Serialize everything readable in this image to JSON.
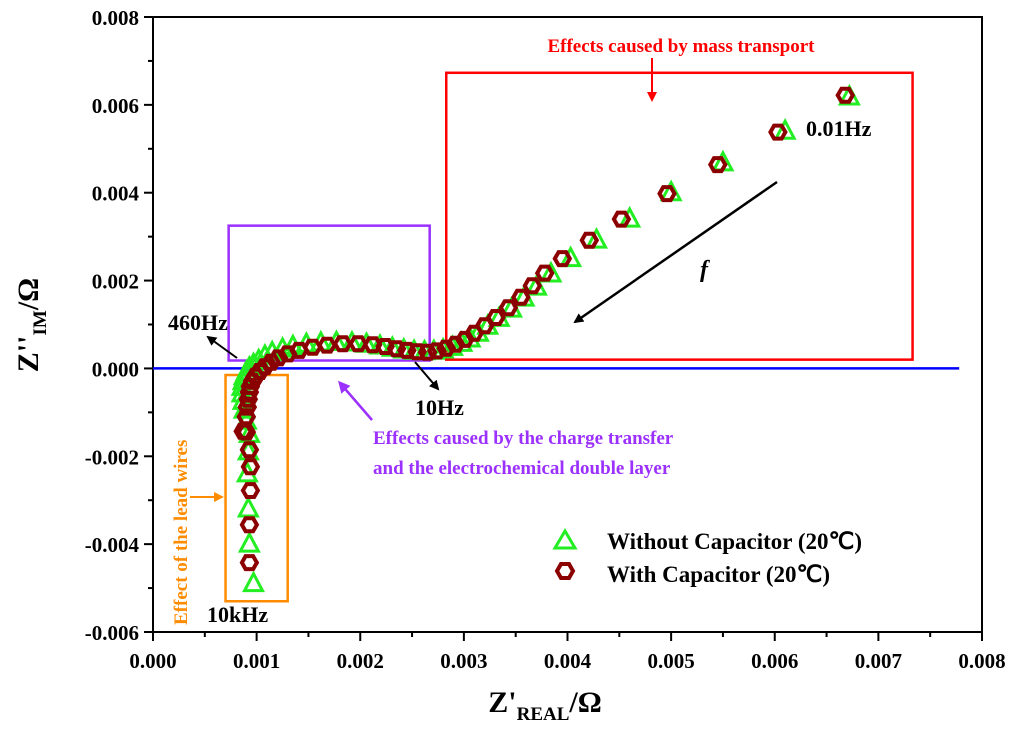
{
  "chart_data": {
    "type": "scatter",
    "title": "",
    "xlabel": "Z'",
    "xlabel_sub": "REAL",
    "xlabel_unit": "/Ω",
    "ylabel": "Z''",
    "ylabel_sub": "IM",
    "ylabel_unit": "/Ω",
    "xlim": [
      0.0,
      0.008
    ],
    "ylim": [
      -0.006,
      0.008
    ],
    "xticks": [
      0.0,
      0.001,
      0.002,
      0.003,
      0.004,
      0.005,
      0.006,
      0.007,
      0.008
    ],
    "yticks": [
      -0.006,
      -0.004,
      -0.002,
      0.0,
      0.002,
      0.004,
      0.006,
      0.008
    ],
    "xtick_labels": [
      "0.000",
      "0.001",
      "0.002",
      "0.003",
      "0.004",
      "0.005",
      "0.006",
      "0.007",
      "0.008"
    ],
    "ytick_labels": [
      "-0.006",
      "-0.004",
      "-0.002",
      "0.000",
      "0.002",
      "0.004",
      "0.006",
      "0.008"
    ],
    "legend_position": "bottom-right",
    "zero_line_color": "#0000ff",
    "series": [
      {
        "name": "Without Capacitor (20℃)",
        "marker": "triangle",
        "color": "#22ee22",
        "x": [
          0.00097,
          0.00093,
          0.00092,
          0.00091,
          0.00092,
          0.00093,
          0.0009,
          0.00088,
          0.00087,
          0.00086,
          0.00086,
          0.00087,
          0.00088,
          0.0009,
          0.00093,
          0.00097,
          0.00102,
          0.00108,
          0.00115,
          0.00125,
          0.00135,
          0.00148,
          0.00162,
          0.00177,
          0.00192,
          0.00206,
          0.00219,
          0.00231,
          0.00242,
          0.00252,
          0.00262,
          0.00271,
          0.0028,
          0.00289,
          0.00298,
          0.00306,
          0.00314,
          0.00323,
          0.00334,
          0.00346,
          0.00358,
          0.0037,
          0.00384,
          0.00403,
          0.00428,
          0.0046,
          0.005,
          0.0055,
          0.0061,
          0.00672
        ],
        "y": [
          -0.0049,
          -0.004,
          -0.0032,
          -0.0024,
          -0.0019,
          -0.0015,
          -0.0012,
          -0.00095,
          -0.00075,
          -0.00058,
          -0.00043,
          -0.0003,
          -0.00019,
          -9e-05,
          1e-05,
          9e-05,
          0.00018,
          0.00028,
          0.00036,
          0.00044,
          0.0005,
          0.00055,
          0.00058,
          0.00059,
          0.00058,
          0.00055,
          0.00051,
          0.00046,
          0.00042,
          0.00039,
          0.00038,
          0.00039,
          0.00042,
          0.00048,
          0.00057,
          0.00067,
          0.0008,
          0.00096,
          0.00114,
          0.00135,
          0.0016,
          0.00185,
          0.00215,
          0.0025,
          0.00292,
          0.0034,
          0.004,
          0.00468,
          0.0054,
          0.00618
        ]
      },
      {
        "name": "With Capacitor (20℃)",
        "marker": "hexagon",
        "color": "#8b0000",
        "x": [
          0.00093,
          0.00093,
          0.00094,
          0.00094,
          0.00093,
          0.0009,
          0.00087,
          0.0009,
          0.00091,
          0.00092,
          0.00093,
          0.00094,
          0.00096,
          0.00099,
          0.00103,
          0.00108,
          0.00114,
          0.00121,
          0.0013,
          0.00141,
          0.00154,
          0.00168,
          0.00183,
          0.00198,
          0.00212,
          0.00224,
          0.00235,
          0.00245,
          0.00255,
          0.00265,
          0.00274,
          0.00283,
          0.00292,
          0.00301,
          0.0031,
          0.0032,
          0.00331,
          0.00343,
          0.00355,
          0.00366,
          0.00378,
          0.00395,
          0.00421,
          0.00452,
          0.00496,
          0.00545,
          0.00603,
          0.00668
        ],
        "y": [
          -0.00442,
          -0.00356,
          -0.00278,
          -0.00224,
          -0.00185,
          -0.00145,
          -0.00143,
          -0.0011,
          -0.00088,
          -0.0007,
          -0.00054,
          -0.00041,
          -0.00029,
          -0.00018,
          -7e-05,
          4e-05,
          0.00014,
          0.00024,
          0.00033,
          0.00041,
          0.00048,
          0.00053,
          0.00056,
          0.00056,
          0.00054,
          0.0005,
          0.00045,
          0.00041,
          0.00038,
          0.00037,
          0.0004,
          0.00046,
          0.00055,
          0.00066,
          0.0008,
          0.00097,
          0.00116,
          0.00138,
          0.00162,
          0.00188,
          0.00217,
          0.0025,
          0.00292,
          0.0034,
          0.00398,
          0.00464,
          0.00538,
          0.00622
        ]
      }
    ],
    "regions": [
      {
        "name": "mass-transport-box",
        "x": [
          0.00283,
          0.00733
        ],
        "y": [
          0.0002,
          0.00673
        ],
        "color": "#ff0000"
      },
      {
        "name": "charge-transfer-box",
        "x": [
          0.00073,
          0.00267
        ],
        "y": [
          0.00018,
          0.00325
        ],
        "color": "#9b30ff"
      },
      {
        "name": "lead-wires-box",
        "x": [
          0.0007,
          0.0013
        ],
        "y": [
          -0.0053,
          -0.00015
        ],
        "color": "#ff8c00"
      }
    ],
    "annotations": {
      "mass_transport": "Effects caused by mass transport",
      "charge_transfer_line1": "Effects caused by the charge transfer",
      "charge_transfer_line2": "and the electrochemical double layer",
      "lead_wires": "Effect of the lead wires",
      "freq_460": "460Hz",
      "freq_10": "10Hz",
      "freq_10k": "10kHz",
      "freq_001": "0.01Hz",
      "f_symbol": "f"
    }
  }
}
